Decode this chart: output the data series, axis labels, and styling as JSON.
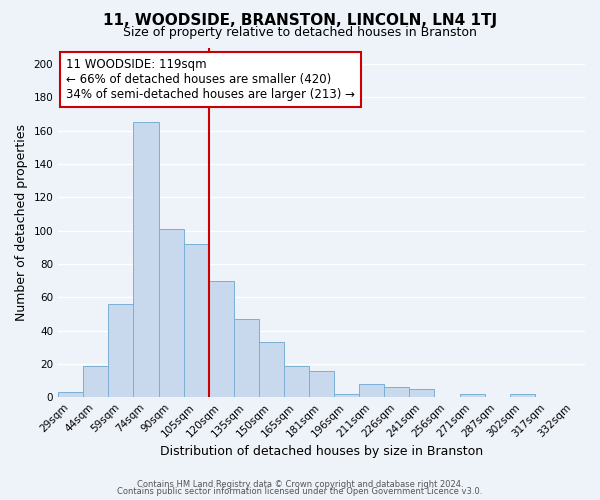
{
  "title": "11, WOODSIDE, BRANSTON, LINCOLN, LN4 1TJ",
  "subtitle": "Size of property relative to detached houses in Branston",
  "bar_values": [
    3,
    19,
    56,
    165,
    101,
    92,
    70,
    47,
    33,
    19,
    16,
    2,
    8,
    6,
    5,
    0,
    2,
    0,
    2,
    0,
    0
  ],
  "bin_labels": [
    "29sqm",
    "44sqm",
    "59sqm",
    "74sqm",
    "90sqm",
    "105sqm",
    "120sqm",
    "135sqm",
    "150sqm",
    "165sqm",
    "181sqm",
    "196sqm",
    "211sqm",
    "226sqm",
    "241sqm",
    "256sqm",
    "271sqm",
    "287sqm",
    "302sqm",
    "317sqm",
    "332sqm"
  ],
  "bar_color": "#c8d9ee",
  "bar_edge_color": "#7aafd4",
  "reference_line_index": 6,
  "reference_line_color": "#cc0000",
  "xlabel": "Distribution of detached houses by size in Branston",
  "ylabel": "Number of detached properties",
  "ylim": [
    0,
    210
  ],
  "yticks": [
    0,
    20,
    40,
    60,
    80,
    100,
    120,
    140,
    160,
    180,
    200
  ],
  "annotation_title": "11 WOODSIDE: 119sqm",
  "annotation_line1": "← 66% of detached houses are smaller (420)",
  "annotation_line2": "34% of semi-detached houses are larger (213) →",
  "annotation_box_facecolor": "#ffffff",
  "annotation_box_edgecolor": "#cc0000",
  "footer_line1": "Contains HM Land Registry data © Crown copyright and database right 2024.",
  "footer_line2": "Contains public sector information licensed under the Open Government Licence v3.0.",
  "background_color": "#eef2f9",
  "grid_color": "#ffffff",
  "title_fontsize": 11,
  "subtitle_fontsize": 9,
  "axis_label_fontsize": 9,
  "tick_fontsize": 7.5,
  "annotation_fontsize": 8.5,
  "footer_fontsize": 6
}
